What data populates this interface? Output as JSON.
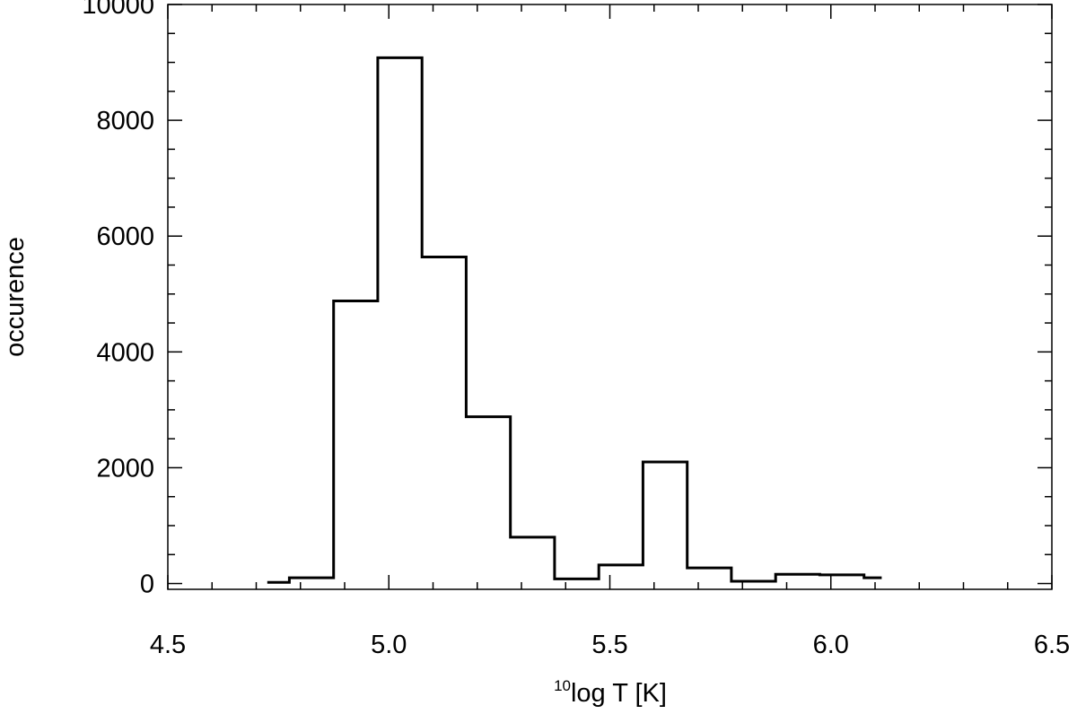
{
  "chart_data": {
    "type": "histogram",
    "title": "",
    "xlabel_superscript": "10",
    "xlabel": "log T [K]",
    "ylabel": "occurence",
    "xlim": [
      4.5,
      6.5
    ],
    "ylim": [
      -100,
      10000
    ],
    "xticks": [
      4.5,
      5.0,
      5.5,
      6.0,
      6.5
    ],
    "xtick_labels": [
      "4.5",
      "5.0",
      "5.5",
      "6.0",
      "6.5"
    ],
    "yticks": [
      0,
      2000,
      4000,
      6000,
      8000,
      10000
    ],
    "ytick_labels": [
      "0",
      "2000",
      "4000",
      "6000",
      "8000",
      "10000"
    ],
    "bin_edges": [
      4.725,
      4.775,
      4.875,
      4.975,
      5.075,
      5.175,
      5.275,
      5.375,
      5.475,
      5.575,
      5.675,
      5.775,
      5.875,
      5.975,
      6.075,
      6.115
    ],
    "values": [
      20,
      100,
      4880,
      9080,
      5640,
      2880,
      800,
      80,
      320,
      2100,
      270,
      40,
      160,
      150,
      100
    ],
    "grid": false,
    "line_color": "#000000"
  }
}
